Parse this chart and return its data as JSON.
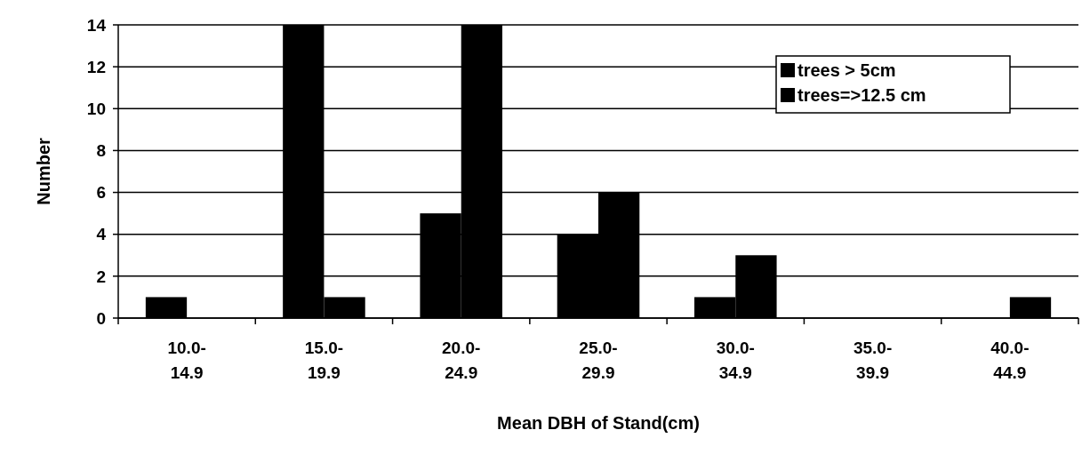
{
  "chart_data": {
    "type": "bar",
    "xlabel": "Mean DBH of Stand(cm)",
    "ylabel": "Number",
    "categories": [
      "10.0-\n14.9",
      "15.0-\n19.9",
      "20.0-\n24.9",
      "25.0-\n29.9",
      "30.0-\n34.9",
      "35.0-\n39.9",
      "40.0-\n44.9"
    ],
    "series": [
      {
        "name": "trees > 5cm",
        "color": "#000000",
        "values": [
          1,
          14,
          5,
          4,
          1,
          0,
          0
        ]
      },
      {
        "name": "trees=>12.5 cm",
        "color": "#000000",
        "values": [
          0,
          1,
          14,
          6,
          3,
          0,
          1
        ]
      }
    ],
    "ylim": [
      0,
      14
    ],
    "yticks": [
      0,
      2,
      4,
      6,
      8,
      10,
      12,
      14
    ],
    "grid": "y",
    "legend": "top right"
  }
}
